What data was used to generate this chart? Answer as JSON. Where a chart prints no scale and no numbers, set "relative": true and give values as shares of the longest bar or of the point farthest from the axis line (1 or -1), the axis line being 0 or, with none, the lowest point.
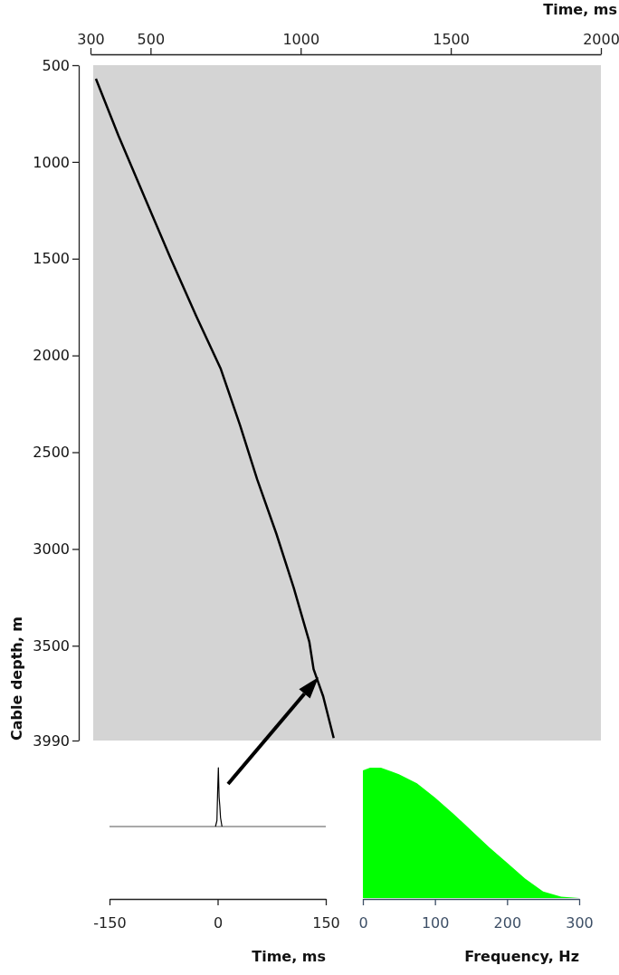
{
  "chart_data": [
    {
      "type": "line",
      "xlabel": "Time, ms",
      "ylabel": "Cable depth, m",
      "xlim": [
        300,
        2000
      ],
      "xticks": [
        300,
        500,
        1000,
        1500,
        2000
      ],
      "ylim": [
        3990,
        500
      ],
      "yticks": [
        500,
        1000,
        1500,
        2000,
        2500,
        3000,
        3500,
        3990
      ],
      "series": [
        {
          "color": "#000000",
          "x": [
            318,
            393,
            480,
            566,
            653,
            734,
            798,
            855,
            919,
            977,
            1029,
            1043,
            1075,
            1110
          ],
          "values": [
            570,
            864,
            1182,
            1495,
            1799,
            2070,
            2360,
            2640,
            2921,
            3201,
            3481,
            3621,
            3762,
            3977
          ]
        }
      ]
    },
    {
      "type": "line",
      "xlabel": "Time, ms",
      "relative": true,
      "xlim": [
        -150,
        150
      ],
      "xticks": [
        -150,
        0,
        150
      ],
      "tick_labels": "x",
      "series": [
        {
          "color": "#000000",
          "x": [
            -3,
            -1,
            0,
            1,
            2,
            3,
            4,
            6
          ],
          "values": [
            0,
            0.1,
            0.6,
            1,
            0.5,
            0.35,
            0.15,
            0
          ]
        }
      ]
    },
    {
      "type": "area",
      "xlabel": "Frequency, Hz",
      "relative": true,
      "xlim": [
        0,
        300
      ],
      "xticks": [
        0,
        100,
        200,
        300
      ],
      "tick_labels": "x",
      "series": [
        {
          "color": "#00ff00",
          "x": [
            0,
            10,
            25,
            40,
            50,
            75,
            100,
            125,
            150,
            175,
            200,
            225,
            250,
            275,
            300
          ],
          "values": [
            0.98,
            1,
            1,
            0.97,
            0.95,
            0.88,
            0.77,
            0.65,
            0.52,
            0.39,
            0.27,
            0.15,
            0.05,
            0.01,
            0
          ]
        }
      ]
    }
  ]
}
